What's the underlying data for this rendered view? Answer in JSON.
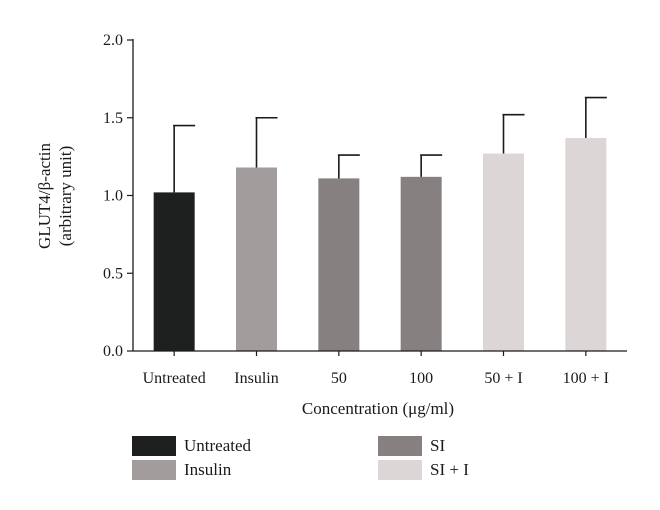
{
  "chart_data": {
    "type": "bar",
    "categories": [
      "Untreated",
      "Insulin",
      "50",
      "100",
      "50 + I",
      "100 + I"
    ],
    "values": [
      1.02,
      1.18,
      1.11,
      1.12,
      1.27,
      1.37
    ],
    "errors": [
      0.43,
      0.32,
      0.15,
      0.14,
      0.25,
      0.26
    ],
    "bar_colors": [
      "#1e201f",
      "#a39c9c",
      "#878080",
      "#878080",
      "#dcd6d6",
      "#dcd6d6"
    ],
    "ylabel_line1": "GLUT4/β-actin",
    "ylabel_line2": "(arbitrary unit)",
    "xlabel": "Concentration (μg/ml)",
    "ylim": [
      0,
      2.0
    ],
    "yticks": [
      "0.0",
      "0.5",
      "1.0",
      "1.5",
      "2.0"
    ],
    "error_bars": "upper",
    "grid": false,
    "legend_position": "bottom",
    "legend": [
      {
        "label": "Untreated",
        "color": "#1e201f"
      },
      {
        "label": "Insulin",
        "color": "#a39c9c"
      },
      {
        "label": "SI",
        "color": "#878080"
      },
      {
        "label": "SI + I",
        "color": "#dcd6d6"
      }
    ]
  }
}
